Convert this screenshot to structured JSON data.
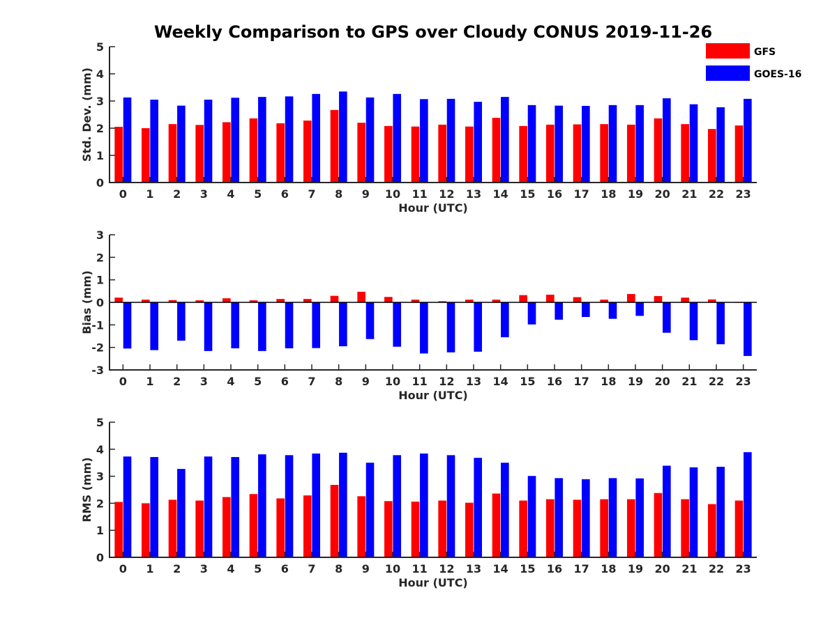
{
  "figure": {
    "title": "Weekly Comparison to GPS over Cloudy CONUS 2019-11-26"
  },
  "legend": {
    "position": "top-right",
    "entries": [
      {
        "name": "GFS",
        "color": "#ff0000"
      },
      {
        "name": "GOES-16",
        "color": "#0000ff"
      }
    ]
  },
  "chart_data": [
    {
      "type": "bar",
      "xlabel": "Hour (UTC)",
      "ylabel": "Std. Dev. (mm)",
      "ylim": [
        0,
        5
      ],
      "yticks": [
        0,
        1,
        2,
        3,
        4,
        5
      ],
      "categories": [
        "0",
        "1",
        "2",
        "3",
        "4",
        "5",
        "6",
        "7",
        "8",
        "9",
        "10",
        "11",
        "12",
        "13",
        "14",
        "15",
        "16",
        "17",
        "18",
        "19",
        "20",
        "21",
        "22",
        "23"
      ],
      "series": [
        {
          "name": "GFS",
          "color": "#ff0000",
          "values": [
            2.05,
            2.0,
            2.15,
            2.12,
            2.22,
            2.36,
            2.18,
            2.28,
            2.67,
            2.2,
            2.08,
            2.06,
            2.13,
            2.06,
            2.38,
            2.08,
            2.13,
            2.14,
            2.15,
            2.13,
            2.36,
            2.15,
            1.97,
            2.1
          ]
        },
        {
          "name": "GOES-16",
          "color": "#0000ff",
          "values": [
            3.13,
            3.05,
            2.83,
            3.05,
            3.12,
            3.15,
            3.17,
            3.26,
            3.35,
            3.13,
            3.26,
            3.07,
            3.08,
            2.97,
            3.15,
            2.85,
            2.83,
            2.82,
            2.85,
            2.85,
            3.1,
            2.88,
            2.77,
            3.08
          ]
        }
      ]
    },
    {
      "type": "bar",
      "xlabel": "Hour (UTC)",
      "ylabel": "Bias (mm)",
      "ylim": [
        -3,
        3
      ],
      "yticks": [
        -3,
        -2,
        -1,
        0,
        1,
        2,
        3
      ],
      "categories": [
        "0",
        "1",
        "2",
        "3",
        "4",
        "5",
        "6",
        "7",
        "8",
        "9",
        "10",
        "11",
        "12",
        "13",
        "14",
        "15",
        "16",
        "17",
        "18",
        "19",
        "20",
        "21",
        "22",
        "23"
      ],
      "series": [
        {
          "name": "GFS",
          "color": "#ff0000",
          "values": [
            0.21,
            0.12,
            0.1,
            0.09,
            0.18,
            0.09,
            0.15,
            0.15,
            0.29,
            0.47,
            0.24,
            0.12,
            0.05,
            0.12,
            0.12,
            0.32,
            0.34,
            0.23,
            0.12,
            0.37,
            0.28,
            0.21,
            0.13,
            -0.02
          ]
        },
        {
          "name": "GOES-16",
          "color": "#0000ff",
          "values": [
            -2.05,
            -2.12,
            -1.7,
            -2.16,
            -2.04,
            -2.16,
            -2.04,
            -2.03,
            -1.95,
            -1.63,
            -1.97,
            -2.27,
            -2.22,
            -2.19,
            -1.55,
            -0.98,
            -0.77,
            -0.65,
            -0.73,
            -0.6,
            -1.35,
            -1.68,
            -1.86,
            -2.38
          ]
        }
      ]
    },
    {
      "type": "bar",
      "xlabel": "Hour (UTC)",
      "ylabel": "RMS (mm)",
      "ylim": [
        0,
        5
      ],
      "yticks": [
        0,
        1,
        2,
        3,
        4,
        5
      ],
      "categories": [
        "0",
        "1",
        "2",
        "3",
        "4",
        "5",
        "6",
        "7",
        "8",
        "9",
        "10",
        "11",
        "12",
        "13",
        "14",
        "15",
        "16",
        "17",
        "18",
        "19",
        "20",
        "21",
        "22",
        "23"
      ],
      "series": [
        {
          "name": "GFS",
          "color": "#ff0000",
          "values": [
            2.05,
            2.0,
            2.13,
            2.1,
            2.23,
            2.34,
            2.18,
            2.29,
            2.68,
            2.26,
            2.08,
            2.06,
            2.1,
            2.02,
            2.36,
            2.1,
            2.15,
            2.13,
            2.15,
            2.15,
            2.38,
            2.15,
            1.97,
            2.1
          ]
        },
        {
          "name": "GOES-16",
          "color": "#0000ff",
          "values": [
            3.73,
            3.71,
            3.27,
            3.73,
            3.71,
            3.81,
            3.78,
            3.84,
            3.87,
            3.5,
            3.78,
            3.84,
            3.78,
            3.68,
            3.5,
            3.01,
            2.93,
            2.89,
            2.93,
            2.92,
            3.39,
            3.33,
            3.35,
            3.89
          ]
        }
      ]
    }
  ]
}
